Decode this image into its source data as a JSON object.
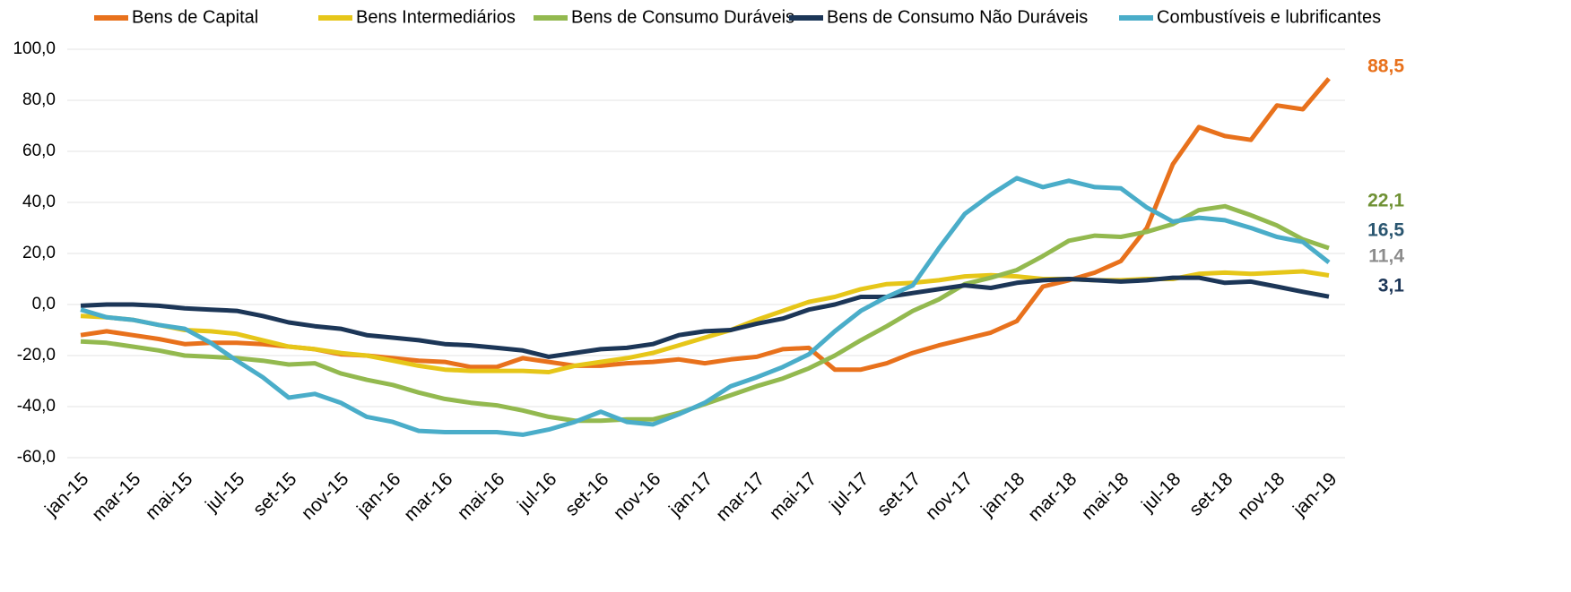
{
  "chart_data": {
    "type": "line",
    "categories": [
      "jan-15",
      null,
      "mar-15",
      null,
      "mai-15",
      null,
      "jul-15",
      null,
      "set-15",
      null,
      "nov-15",
      null,
      "jan-16",
      null,
      "mar-16",
      null,
      "mai-16",
      null,
      "jul-16",
      null,
      "set-16",
      null,
      "nov-16",
      null,
      "jan-17",
      null,
      "mar-17",
      null,
      "mai-17",
      null,
      "jul-17",
      null,
      "set-17",
      null,
      "nov-17",
      null,
      "jan-18",
      null,
      "mar-18",
      null,
      "mai-18",
      null,
      "jul-18",
      null,
      "set-18",
      null,
      "nov-18",
      null,
      "jan-19"
    ],
    "ylim": [
      -60,
      100
    ],
    "yticks": [
      {
        "value": -60,
        "label": "-60,0"
      },
      {
        "value": -40,
        "label": "-40,0"
      },
      {
        "value": -20,
        "label": "-20,0"
      },
      {
        "value": 0,
        "label": "0,0"
      },
      {
        "value": 20,
        "label": "20,0"
      },
      {
        "value": 40,
        "label": "40,0"
      },
      {
        "value": 60,
        "label": "60,0"
      },
      {
        "value": 80,
        "label": "80,0"
      },
      {
        "value": 100,
        "label": "100,0"
      }
    ],
    "grid": true,
    "legend": "top",
    "series": [
      {
        "name": "Bens de Capital",
        "color": "#e8711c",
        "label_color": "#e8711c",
        "values": [
          -12,
          -10.5,
          -12,
          -13.5,
          -15.5,
          -15,
          -15,
          -15.5,
          -16.5,
          -17.5,
          -19.5,
          -20,
          -21,
          -22,
          -22.5,
          -24.5,
          -24.5,
          -21,
          -22.5,
          -24,
          -24,
          -23,
          -22.5,
          -21.5,
          -23,
          -21.5,
          -20.5,
          -17.5,
          -17,
          -25.5,
          -25.5,
          -23,
          -19,
          -16,
          -13.5,
          -11,
          -6.5,
          7,
          9.5,
          12.5,
          17,
          30,
          55,
          69.5,
          66,
          64.5,
          78,
          76.5,
          88.5
        ],
        "value_labels": [
          null,
          null,
          null,
          null,
          null,
          null,
          null,
          null,
          null,
          null,
          null,
          null,
          null,
          null,
          null,
          null,
          null,
          null,
          null,
          null,
          null,
          null,
          null,
          null,
          null,
          null,
          null,
          null,
          null,
          null,
          null,
          null,
          null,
          null,
          null,
          null,
          null,
          null,
          null,
          null,
          null,
          null,
          null,
          null,
          null,
          null,
          null,
          null,
          "88,5"
        ]
      },
      {
        "name": "Bens Intermediários",
        "color": "#e6c619",
        "label_color": "#8c8c8c",
        "values": [
          -4.5,
          -5,
          -6,
          -8,
          -10,
          -10.5,
          -11.5,
          -14,
          -16.5,
          -17.5,
          -19,
          -20,
          -22,
          -24,
          -25.5,
          -26,
          -26,
          -26,
          -26.5,
          -24,
          -22.5,
          -21,
          -19,
          -16,
          -13,
          -10,
          -6,
          -2.5,
          1,
          3,
          6,
          8,
          8.5,
          9.5,
          11,
          11.5,
          11,
          10,
          10,
          9.5,
          9.5,
          10,
          10,
          12,
          12.5,
          12,
          12.5,
          13,
          11.4
        ],
        "value_labels": [
          null,
          null,
          null,
          null,
          null,
          null,
          null,
          null,
          null,
          null,
          null,
          null,
          null,
          null,
          null,
          null,
          null,
          null,
          null,
          null,
          null,
          null,
          null,
          null,
          null,
          null,
          null,
          null,
          null,
          null,
          null,
          null,
          null,
          null,
          null,
          null,
          null,
          null,
          null,
          null,
          null,
          null,
          null,
          null,
          null,
          null,
          null,
          null,
          "11,4"
        ]
      },
      {
        "name": "Bens de Consumo Duráveis",
        "color": "#93b94f",
        "label_color": "#6f9134",
        "values": [
          -14.5,
          -15,
          -16.5,
          -18,
          -20,
          -20.5,
          -21,
          -22,
          -23.5,
          -23,
          -27,
          -29.5,
          -31.5,
          -34.5,
          -37,
          -38.5,
          -39.5,
          -41.5,
          -44,
          -45.5,
          -45.5,
          -45,
          -45,
          -42.5,
          -39,
          -35.5,
          -32,
          -29,
          -25,
          -20,
          -14,
          -8.5,
          -2.5,
          2,
          8,
          10.5,
          13.5,
          19,
          25,
          27,
          26.5,
          28.5,
          31.5,
          37,
          38.5,
          35,
          31,
          25.5,
          22.1
        ],
        "value_labels": [
          null,
          null,
          null,
          null,
          null,
          null,
          null,
          null,
          null,
          null,
          null,
          null,
          null,
          null,
          null,
          null,
          null,
          null,
          null,
          null,
          null,
          null,
          null,
          null,
          null,
          null,
          null,
          null,
          null,
          null,
          null,
          null,
          null,
          null,
          null,
          null,
          null,
          null,
          null,
          null,
          null,
          null,
          null,
          null,
          null,
          null,
          null,
          null,
          "22,1"
        ]
      },
      {
        "name": "Bens de Consumo Não Duráveis",
        "color": "#1c3657",
        "label_color": "#1c3657",
        "values": [
          -0.5,
          0,
          0,
          -0.5,
          -1.5,
          -2,
          -2.5,
          -4.5,
          -7,
          -8.5,
          -9.5,
          -12,
          -13,
          -14,
          -15.5,
          -16,
          -17,
          -18,
          -20.5,
          -19,
          -17.5,
          -17,
          -15.5,
          -12,
          -10.5,
          -10,
          -7.5,
          -5.5,
          -2,
          0,
          3,
          3,
          4.5,
          6,
          7.5,
          6.5,
          8.5,
          9.5,
          10,
          9.5,
          9,
          9.5,
          10.5,
          10.5,
          8.5,
          9,
          7,
          5,
          3.1
        ],
        "value_labels": [
          null,
          null,
          null,
          null,
          null,
          null,
          null,
          null,
          null,
          null,
          null,
          null,
          null,
          null,
          null,
          null,
          null,
          null,
          null,
          null,
          null,
          null,
          null,
          null,
          null,
          null,
          null,
          null,
          null,
          null,
          null,
          null,
          null,
          null,
          null,
          null,
          null,
          null,
          null,
          null,
          null,
          null,
          null,
          null,
          null,
          null,
          null,
          null,
          "3,1"
        ]
      },
      {
        "name": "Combustíveis e lubrificantes",
        "color": "#4aadc9",
        "label_color": "#2a5670",
        "values": [
          -2,
          -5,
          -6,
          -8,
          -9.5,
          -15,
          -22,
          -28.5,
          -36.5,
          -35,
          -38.5,
          -44,
          -46,
          -49.5,
          -50,
          -50,
          -50,
          -51,
          -49,
          -46,
          -42,
          -46,
          -47,
          -43,
          -38.5,
          -32,
          -28.5,
          -24.5,
          -19.5,
          -10.5,
          -2.5,
          3,
          7.5,
          22,
          35.5,
          43,
          49.5,
          46,
          48.5,
          46,
          45.5,
          38,
          32.5,
          34,
          33,
          30,
          26.5,
          24.5,
          16.5
        ],
        "value_labels": [
          null,
          null,
          null,
          null,
          null,
          null,
          null,
          null,
          null,
          null,
          null,
          null,
          null,
          null,
          null,
          null,
          null,
          null,
          null,
          null,
          null,
          null,
          null,
          null,
          null,
          null,
          null,
          null,
          null,
          null,
          null,
          null,
          null,
          null,
          null,
          null,
          null,
          null,
          null,
          null,
          null,
          null,
          null,
          null,
          null,
          null,
          null,
          null,
          "16,5"
        ]
      }
    ]
  }
}
